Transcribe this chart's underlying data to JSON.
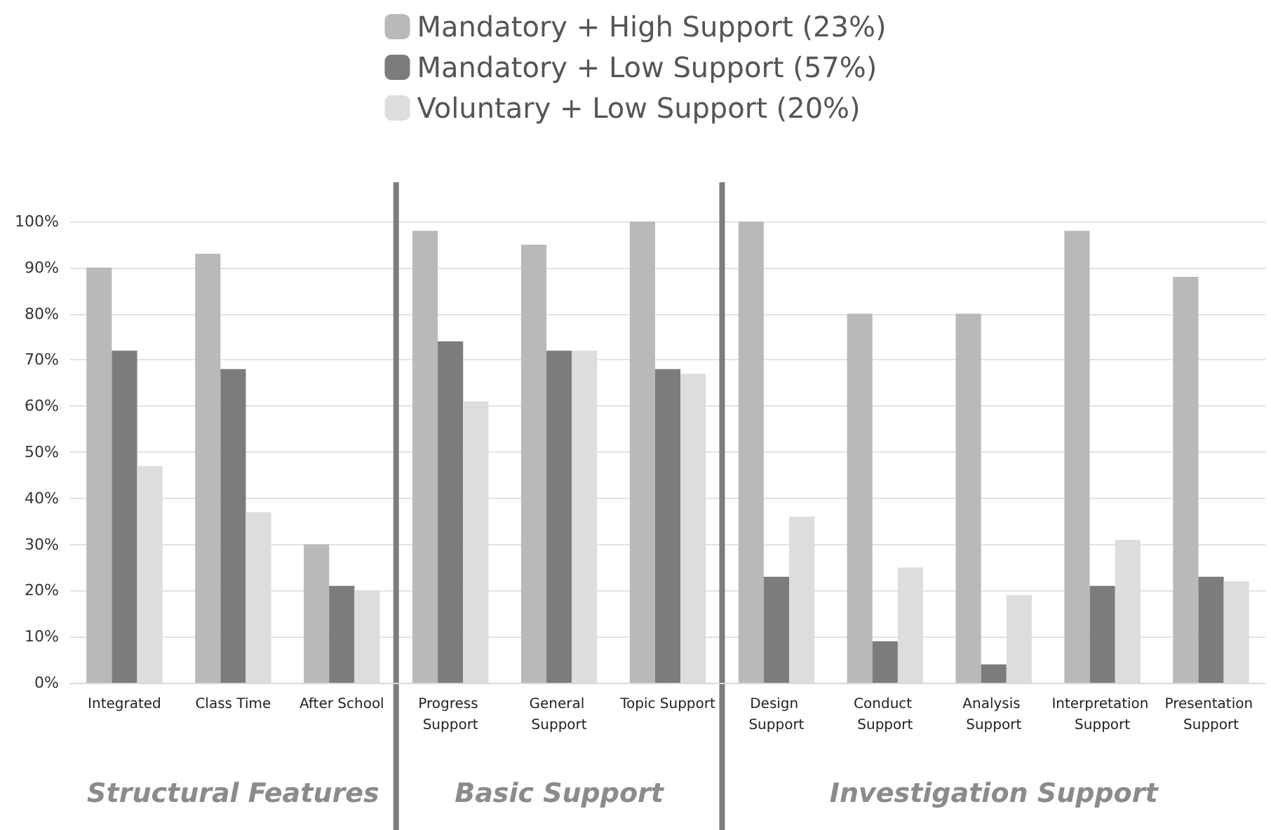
{
  "chart_data": {
    "type": "bar",
    "categories": [
      "Integrated",
      "Class Time",
      "After School",
      "Progress Support",
      "General Support",
      "Topic Support",
      "Design Support",
      "Conduct Support",
      "Analysis Support",
      "Interpretation Support",
      "Presentation Support"
    ],
    "series": [
      {
        "name": "Mandatory + High Support (23%)",
        "color": "#b8b9bb",
        "values": [
          90,
          93,
          30,
          98,
          95,
          100,
          100,
          80,
          80,
          98,
          88
        ]
      },
      {
        "name": "Mandatory + Low Support (57%)",
        "color": "#7b7c7e",
        "values": [
          72,
          68,
          21,
          74,
          72,
          68,
          23,
          9,
          4,
          21,
          23
        ]
      },
      {
        "name": "Voluntary + Low Support (20%)",
        "color": "#dcdddf",
        "values": [
          47,
          37,
          20,
          61,
          72,
          67,
          36,
          25,
          19,
          31,
          22
        ]
      }
    ],
    "ylim": [
      0,
      100
    ],
    "yticks": [
      {
        "value": 0,
        "label": "0%"
      },
      {
        "value": 10,
        "label": "10%"
      },
      {
        "value": 20,
        "label": "20%"
      },
      {
        "value": 30,
        "label": "30%"
      },
      {
        "value": 40,
        "label": "40%"
      },
      {
        "value": 50,
        "label": "50%"
      },
      {
        "value": 60,
        "label": "60%"
      },
      {
        "value": 70,
        "label": "70%"
      },
      {
        "value": 80,
        "label": "80%"
      },
      {
        "value": 90,
        "label": "90%"
      },
      {
        "value": 100,
        "label": "100%"
      }
    ],
    "grid": "y",
    "legend": "top",
    "annotations": [
      "Structural Features",
      "Basic Support",
      "Investigation Support"
    ]
  }
}
